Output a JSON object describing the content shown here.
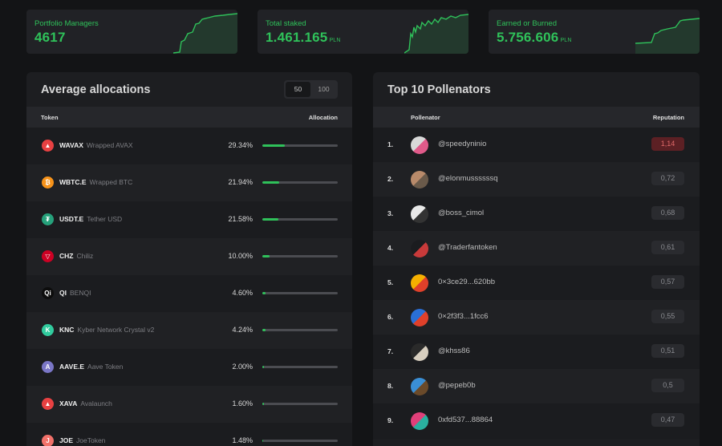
{
  "stats": [
    {
      "label": "Portfolio Managers",
      "value": "4617",
      "unit": ""
    },
    {
      "label": "Total staked",
      "value": "1.461.165",
      "unit": "PLN"
    },
    {
      "label": "Earned or Burned",
      "value": "5.756.606",
      "unit": "PLN"
    }
  ],
  "allocations": {
    "title": "Average allocations",
    "toggle": {
      "a": "50",
      "b": "100",
      "selected": "50"
    },
    "columns": {
      "token": "Token",
      "allocation": "Allocation"
    },
    "rows": [
      {
        "symbol": "WAVAX",
        "name": "Wrapped AVAX",
        "percent": "29.34%",
        "value": 29.34,
        "icon": "avalanche-icon",
        "glyph": "▲",
        "color": "#e84142"
      },
      {
        "symbol": "WBTC.E",
        "name": "Wrapped BTC",
        "percent": "21.94%",
        "value": 21.94,
        "icon": "bitcoin-icon",
        "glyph": "₿",
        "color": "#f7931a"
      },
      {
        "symbol": "USDT.E",
        "name": "Tether USD",
        "percent": "21.58%",
        "value": 21.58,
        "icon": "tether-icon",
        "glyph": "₮",
        "color": "#26a17b"
      },
      {
        "symbol": "CHZ",
        "name": "Chiliz",
        "percent": "10.00%",
        "value": 10.0,
        "icon": "chiliz-icon",
        "glyph": "▽",
        "color": "#cd0124"
      },
      {
        "symbol": "QI",
        "name": "BENQI",
        "percent": "4.60%",
        "value": 4.6,
        "icon": "benqi-icon",
        "glyph": "Qi",
        "color": "#0d0d0d"
      },
      {
        "symbol": "KNC",
        "name": "Kyber Network Crystal v2",
        "percent": "4.24%",
        "value": 4.24,
        "icon": "kyber-icon",
        "glyph": "K",
        "color": "#31cb9e"
      },
      {
        "symbol": "AAVE.E",
        "name": "Aave Token",
        "percent": "2.00%",
        "value": 2.0,
        "icon": "aave-icon",
        "glyph": "A",
        "color": "#7a76c6"
      },
      {
        "symbol": "XAVA",
        "name": "Avalaunch",
        "percent": "1.60%",
        "value": 1.6,
        "icon": "avalaunch-icon",
        "glyph": "▲",
        "color": "#e84142"
      },
      {
        "symbol": "JOE",
        "name": "JoeToken",
        "percent": "1.48%",
        "value": 1.48,
        "icon": "joe-icon",
        "glyph": "J",
        "color": "#f2716a"
      }
    ]
  },
  "pollenators": {
    "title": "Top 10 Pollenators",
    "columns": {
      "pollenator": "Pollenator",
      "reputation": "Reputation"
    },
    "rows": [
      {
        "rank": "1.",
        "handle": "@speedyninio",
        "reputation": "1,14",
        "avatar": [
          "#d8d8d8",
          "#e05a8a"
        ]
      },
      {
        "rank": "2.",
        "handle": "@elonmussssssq",
        "reputation": "0,72",
        "avatar": [
          "#b88a6a",
          "#6a5a4a"
        ]
      },
      {
        "rank": "3.",
        "handle": "@boss_cimol",
        "reputation": "0,68",
        "avatar": [
          "#e8e8e8",
          "#333333"
        ]
      },
      {
        "rank": "4.",
        "handle": "@Traderfantoken",
        "reputation": "0,61",
        "avatar": [
          "#1b1c1f",
          "#c83a3a"
        ]
      },
      {
        "rank": "5.",
        "handle": "0×3ce29...620bb",
        "reputation": "0,57",
        "avatar": [
          "#f5b000",
          "#e0402a"
        ]
      },
      {
        "rank": "6.",
        "handle": "0×2f3f3...1fcc6",
        "reputation": "0,55",
        "avatar": [
          "#2a6fd6",
          "#e0402a"
        ]
      },
      {
        "rank": "7.",
        "handle": "@khss86",
        "reputation": "0,51",
        "avatar": [
          "#2a2a2a",
          "#d8cfc0"
        ]
      },
      {
        "rank": "8.",
        "handle": "@pepeb0b",
        "reputation": "0,5",
        "avatar": [
          "#3a8fd6",
          "#6a4a2a"
        ]
      },
      {
        "rank": "9.",
        "handle": "0xfd537...88864",
        "reputation": "0,47",
        "avatar": [
          "#e0407a",
          "#2ab0a0"
        ]
      }
    ]
  },
  "colors": {
    "accent": "#2fc15a",
    "background": "#131416",
    "panel": "#1d1e21",
    "top_rep": "#5c2024"
  }
}
